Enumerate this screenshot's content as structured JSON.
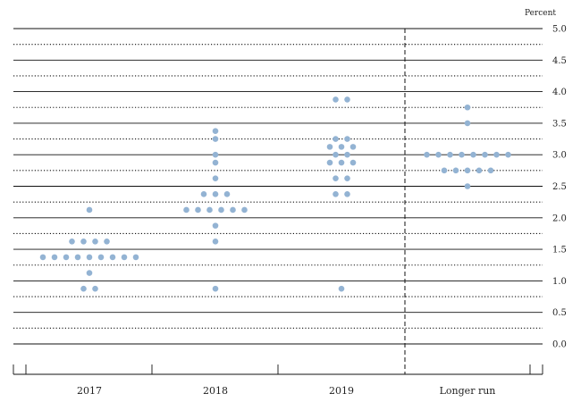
{
  "chart_data": {
    "type": "scatter",
    "unit_label": "Percent",
    "ylim": [
      0,
      5
    ],
    "yticks": [
      "0.0",
      "0.5",
      "1.0",
      "1.5",
      "2.0",
      "2.5",
      "3.0",
      "3.5",
      "4.0",
      "4.5",
      "5.0"
    ],
    "categories": [
      "2017",
      "2018",
      "2019",
      "Longer run"
    ],
    "grid": "solid lines at whole and half percents, dotted lines at quarter percents",
    "dot_color": "#93b3d3",
    "series": [
      {
        "category": "2017",
        "points": [
          {
            "y": 2.125,
            "count": 1
          },
          {
            "y": 1.625,
            "count": 4
          },
          {
            "y": 1.375,
            "count": 9
          },
          {
            "y": 1.125,
            "count": 1
          },
          {
            "y": 0.875,
            "count": 2
          }
        ]
      },
      {
        "category": "2018",
        "points": [
          {
            "y": 3.375,
            "count": 1
          },
          {
            "y": 3.25,
            "count": 1
          },
          {
            "y": 3.0,
            "count": 1
          },
          {
            "y": 2.875,
            "count": 1
          },
          {
            "y": 2.625,
            "count": 1
          },
          {
            "y": 2.375,
            "count": 3
          },
          {
            "y": 2.125,
            "count": 6
          },
          {
            "y": 1.875,
            "count": 1
          },
          {
            "y": 1.625,
            "count": 1
          },
          {
            "y": 0.875,
            "count": 1
          }
        ]
      },
      {
        "category": "2019",
        "points": [
          {
            "y": 3.875,
            "count": 2
          },
          {
            "y": 3.25,
            "count": 2
          },
          {
            "y": 3.125,
            "count": 3
          },
          {
            "y": 3.0,
            "count": 2
          },
          {
            "y": 2.875,
            "count": 3
          },
          {
            "y": 2.625,
            "count": 2
          },
          {
            "y": 2.375,
            "count": 2
          },
          {
            "y": 0.875,
            "count": 1
          }
        ]
      },
      {
        "category": "Longer run",
        "points": [
          {
            "y": 3.75,
            "count": 1
          },
          {
            "y": 3.5,
            "count": 1
          },
          {
            "y": 3.0,
            "count": 8
          },
          {
            "y": 2.75,
            "count": 5
          },
          {
            "y": 2.5,
            "count": 1
          }
        ]
      }
    ]
  }
}
